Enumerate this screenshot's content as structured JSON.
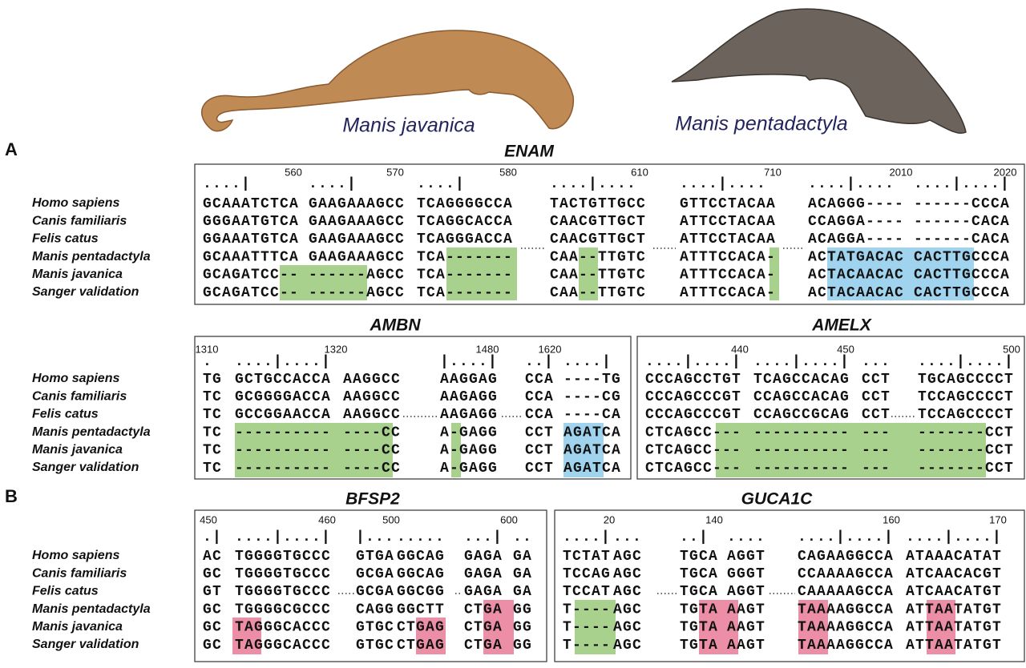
{
  "photos": [
    {
      "label": "Manis javanica"
    },
    {
      "label": "Manis pentadactyla"
    }
  ],
  "panel_labels": [
    "A",
    "B"
  ],
  "species": [
    "Homo sapiens",
    "Canis familiaris",
    "Felis catus",
    "Manis pentadactyla",
    "Manis javanica",
    "Sanger validation"
  ],
  "alignments": [
    {
      "gene": "ENAM",
      "positions": [
        560,
        570,
        580,
        610,
        710,
        2010,
        2020
      ],
      "blocks": [
        {
          "ruler": "....|",
          "rows": [
            "GCAAATCTCA",
            "GGGAATGTCA",
            "GGAAATGTCA",
            "GCAAATTTCA",
            "GCAGATCC--",
            "GCAGATCC--"
          ]
        },
        {
          "ruler": "....|",
          "rows": [
            "GAAGAAAGCC",
            "GAAGAAAGCC",
            "GAAGAAAGCC",
            "GAAGAAAGCC",
            "------AGCC",
            "------AGCC"
          ]
        },
        {
          "ruler": "....|",
          "rows": [
            "TCAGGGGCCA",
            "TCAGGCACCA",
            "TCAGGGACCA",
            "TCA-------",
            "TCA-------",
            "TCA-------"
          ]
        },
        {
          "ruler": "....|....",
          "rows": [
            "TACTGTTGCC",
            "CAACGTTGCT",
            "CAACGTTGCT",
            "CAA--TTGTC",
            "CAA--TTGTC",
            "CAA--TTGTC"
          ]
        },
        {
          "ruler": "....|....",
          "rows": [
            "GTTCCTACAA",
            "ATTCCTACAA",
            "ATTCCTACAA",
            "ATTTCCACA-",
            "ATTTCCACA-",
            "ATTTCCACA-"
          ]
        },
        {
          "ruler": "....|....",
          "rows": [
            "ACAGGG----",
            "CCAGGA----",
            "ACAGGA----",
            "ACTATGACAC",
            "ACTACAACAC",
            "ACTACAACAC"
          ]
        },
        {
          "ruler": "....|....|",
          "rows": [
            "------CCCA",
            "------CACA",
            "------CACA",
            "CACTTGCCCA",
            "CACTTGCCCA",
            "CACTTGCCCA"
          ]
        }
      ]
    },
    {
      "gene": "AMBN",
      "positions": [
        1310,
        1320,
        1480,
        1620
      ],
      "blocks": [
        {
          "ruler": ".",
          "rows": [
            "TG",
            "TC",
            "TC",
            "TC",
            "TC",
            "TC"
          ]
        },
        {
          "ruler": "....|....|",
          "rows": [
            "GCTGCCACCA",
            "GCGGGGACCA",
            "GCCGGAACCA",
            "----------",
            "----------",
            "----------"
          ]
        },
        {
          "ruler": "",
          "rows": [
            "AAGGCC",
            "AAGGCC",
            "AAGGCC",
            "----CC",
            "----CC",
            "----CC"
          ]
        },
        {
          "ruler": "|....|",
          "rows": [
            "AAGGAG",
            "AAGAGG",
            "AAGAGG",
            "A-GAGG",
            "A-GAGG",
            "A-GAGG"
          ]
        },
        {
          "ruler": "..|",
          "rows": [
            "CCA",
            "CCA",
            "CCA",
            "CCT",
            "CCT",
            "CCT"
          ]
        },
        {
          "ruler": "....|",
          "rows": [
            "----TG",
            "----CG",
            "----CA",
            "AGATCA",
            "AGATCA",
            "AGATCA"
          ]
        }
      ]
    },
    {
      "gene": "AMELX",
      "positions": [
        440,
        450,
        500
      ],
      "blocks": [
        {
          "ruler": "....|....|",
          "rows": [
            "CCCAGCCTGT",
            "CCCAGCCCGT",
            "CCCAGCCCGT",
            "CTCAGCC---",
            "CTCAGCC---",
            "CTCAGCC---"
          ]
        },
        {
          "ruler": "....|....|",
          "rows": [
            "TCAGCCACAG",
            "CCAGCCACAG",
            "CCAGCCGCAG",
            "----------",
            "----------",
            "----------"
          ]
        },
        {
          "ruler": "...",
          "rows": [
            "CCT",
            "CCT",
            "CCT",
            "---",
            "---",
            "---"
          ]
        },
        {
          "ruler": "....|....|",
          "rows": [
            "TGCAGCCCCT",
            "TCCAGCCCCT",
            "TCCAGCCCCT",
            "-------CCT",
            "-------CCT",
            "-------CCT"
          ]
        }
      ]
    },
    {
      "gene": "BFSP2",
      "positions": [
        450,
        460,
        500,
        600
      ],
      "blocks": [
        {
          "ruler": ".|",
          "rows": [
            "AC",
            "GC",
            "GT",
            "GC",
            "GC",
            "GC"
          ]
        },
        {
          "ruler": "....|....|",
          "rows": [
            "TGGGGTGCCC",
            "TGGGGTGCCC",
            "TGGGGTGCCC",
            "TGGGGCGCCC",
            "TAGGGCACCC",
            "TAGGGCACCC"
          ]
        },
        {
          "ruler": "|...",
          "rows": [
            "GTGA",
            "GCGA",
            "GCGA",
            "CAGG",
            "GTGC",
            "GTGC"
          ]
        },
        {
          "ruler": ".....",
          "rows": [
            "GGCAG",
            "GGCAG",
            "GGCGG",
            "GGCTT",
            "CTGAG",
            "CTGAG"
          ]
        },
        {
          "ruler": "...|",
          "rows": [
            "GAGA",
            "GAGA",
            "GAGA",
            "CTGA",
            "CTGA",
            "CTGA"
          ]
        },
        {
          "ruler": "..",
          "rows": [
            "GA",
            "GA",
            "GA",
            "GG",
            "GG",
            "GG"
          ]
        }
      ]
    },
    {
      "gene": "GUCA1C",
      "positions": [
        20,
        140,
        160,
        170
      ],
      "blocks": [
        {
          "ruler": "....|",
          "rows": [
            "TCTAT",
            "TCCAG",
            "TCCAT",
            "T----",
            "T----",
            "T----"
          ]
        },
        {
          "ruler": "...",
          "rows": [
            "AGC",
            "AGC",
            "AGC",
            "AGC",
            "AGC",
            "AGC"
          ]
        },
        {
          "ruler": "..|",
          "rows": [
            "TGCA",
            "TGCA",
            "TGCA",
            "TGTA",
            "TGTA",
            "TGTA"
          ]
        },
        {
          "ruler": "....",
          "rows": [
            "AGGT",
            "GGGT",
            "AGGT",
            "AAGT",
            "AAGT",
            "AAGT"
          ]
        },
        {
          "ruler": "....|....|",
          "rows": [
            "CAGAAGGCCA",
            "CCAAAAGCCA",
            "CAAAAAGCCA",
            "TAAAAGGCCA",
            "TAAAAGGCCA",
            "TAAAAGGCCA"
          ]
        },
        {
          "ruler": "....|....|",
          "rows": [
            "ATAAACATAT",
            "ATCAACACGT",
            "ATCAACATGT",
            "ATTAATATGT",
            "ATTAATATGT",
            "ATTAATATGT"
          ]
        }
      ]
    }
  ]
}
